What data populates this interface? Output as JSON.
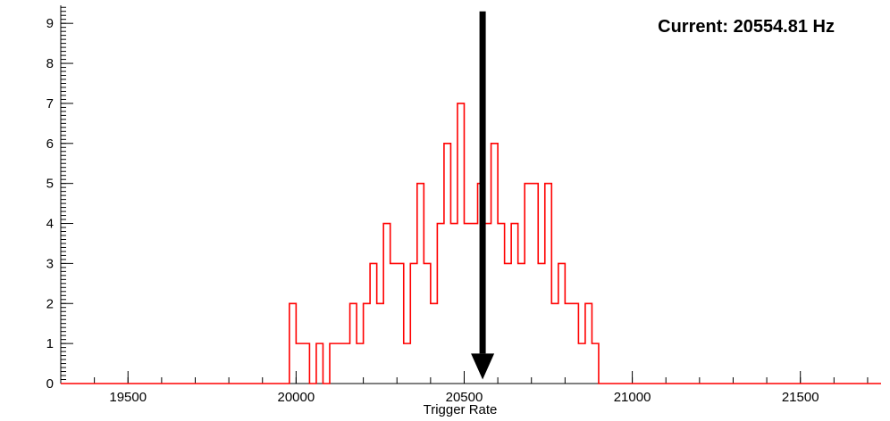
{
  "chart_data": {
    "type": "bar",
    "style": "step-histogram",
    "title": "",
    "xlabel": "Trigger Rate",
    "ylabel": "",
    "annotation": "Current: 20554.81 Hz",
    "grid": false,
    "background_color": "#ffffff",
    "axis_color": "#000000",
    "series_color": "#ff0000",
    "arrow": {
      "x": 20554.81,
      "color": "#000000",
      "y_top": 9.3,
      "y_base": 0.75,
      "y_tip": 0.1
    },
    "xlim": [
      19300,
      21740
    ],
    "ylim": [
      0,
      9.45
    ],
    "x_major_ticks": [
      19500,
      20000,
      20500,
      21000,
      21500
    ],
    "x_major_tick_labels": [
      "19500",
      "20000",
      "20500",
      "21000",
      "21500"
    ],
    "x_minor_tick_step": 100,
    "y_major_ticks": [
      0,
      1,
      2,
      3,
      4,
      5,
      6,
      7,
      8,
      9
    ],
    "y_major_tick_labels": [
      "0",
      "1",
      "2",
      "3",
      "4",
      "5",
      "6",
      "7",
      "8",
      "9"
    ],
    "y_minor_tick_step": 0.1,
    "bin_start": 19980,
    "bin_width": 20,
    "counts": [
      2,
      1,
      1,
      0,
      1,
      0,
      1,
      1,
      1,
      2,
      1,
      2,
      3,
      2,
      4,
      3,
      3,
      1,
      3,
      5,
      3,
      2,
      4,
      6,
      4,
      7,
      4,
      4,
      5,
      4,
      6,
      4,
      3,
      4,
      3,
      5,
      5,
      3,
      5,
      2,
      3,
      2,
      2,
      1,
      2,
      1
    ]
  }
}
